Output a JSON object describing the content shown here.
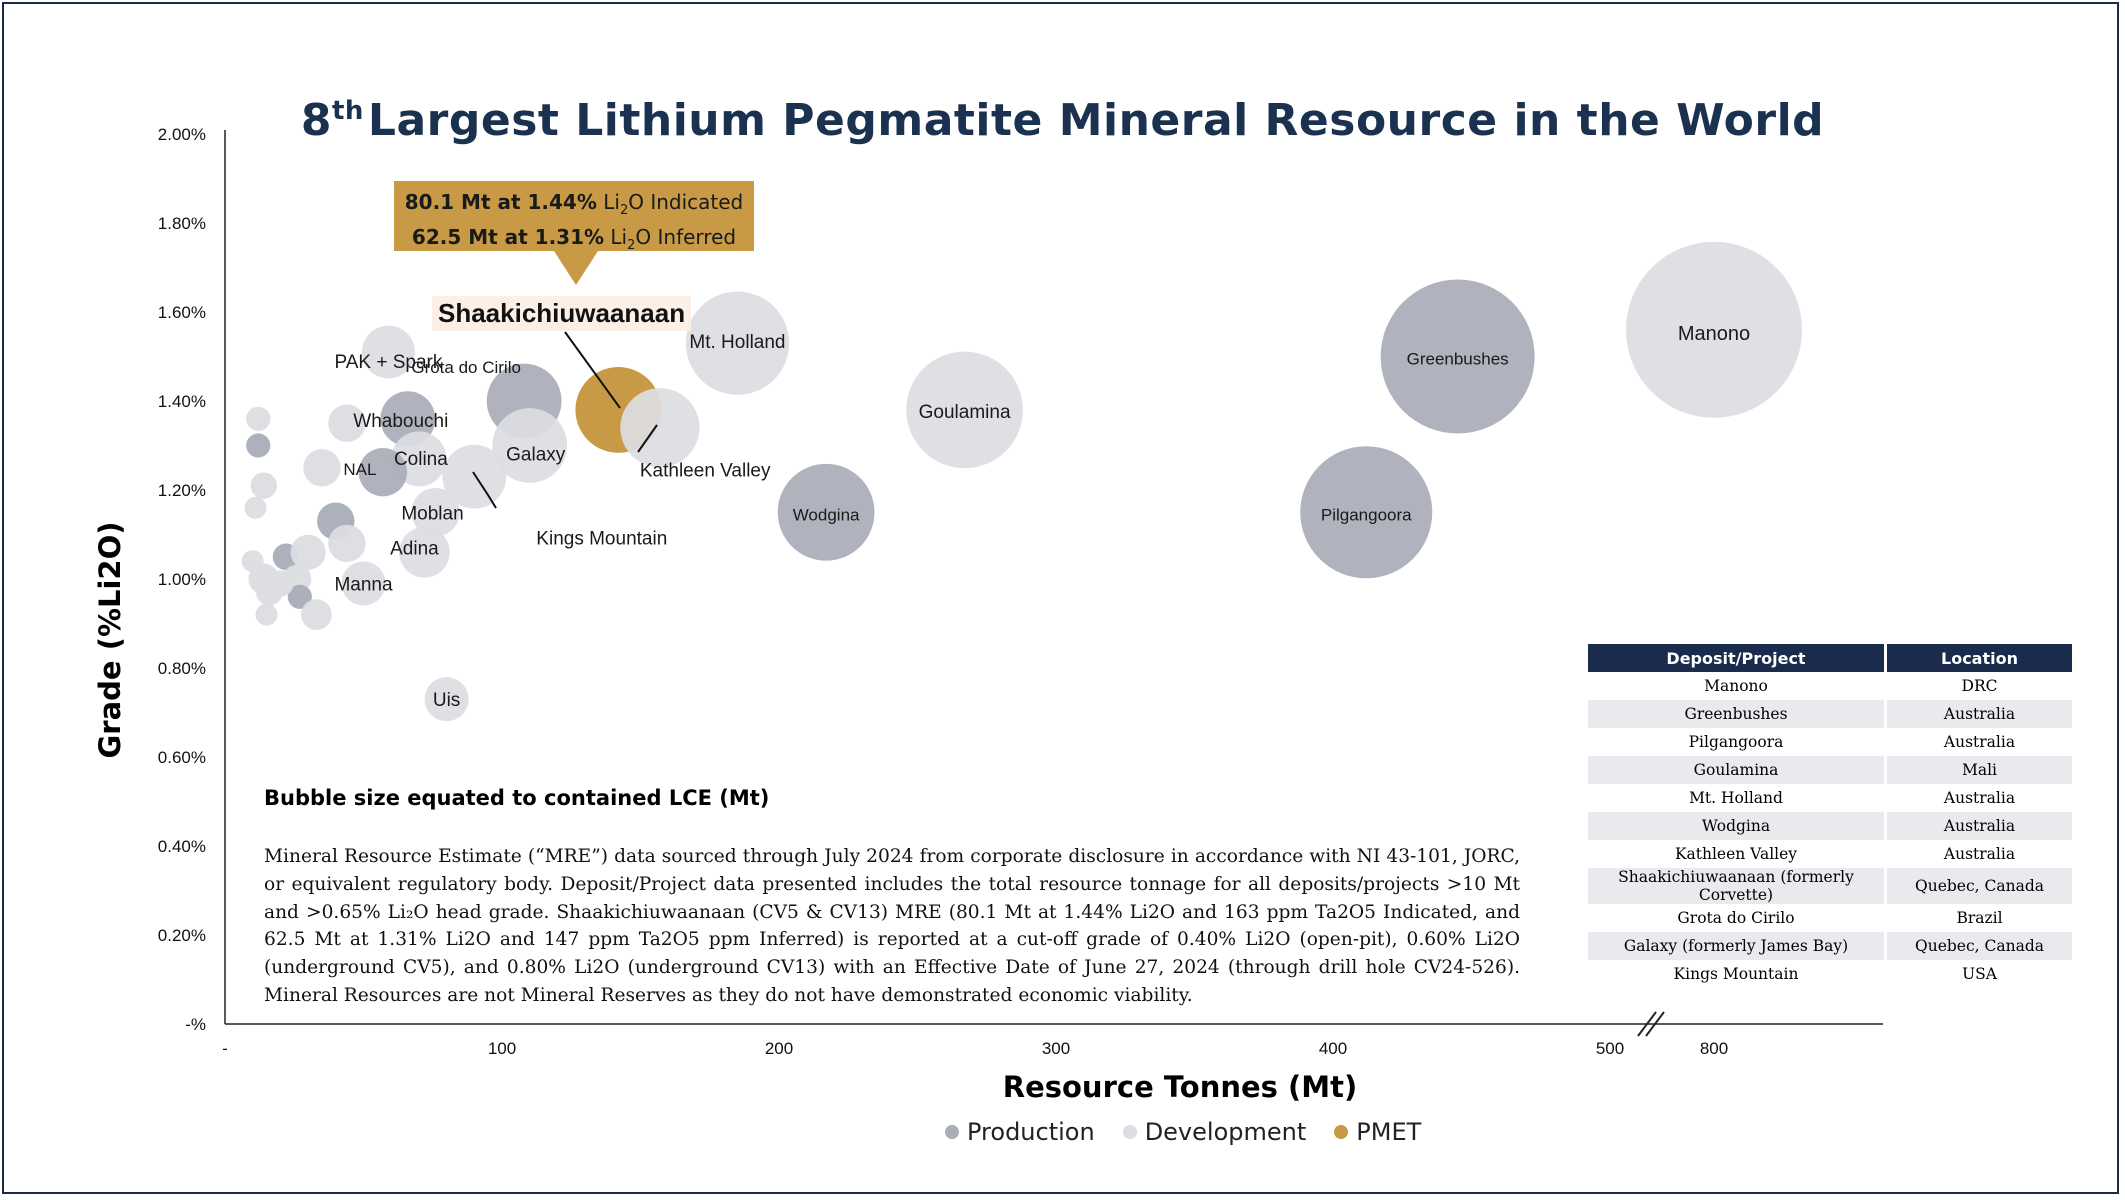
{
  "title": {
    "sup": "th",
    "pre": "8",
    "rest": "Largest Lithium Pegmatite Mineral Resource in the World"
  },
  "callout": {
    "line1_bold": "80.1 Mt at 1.44%",
    "line1_rest": "Indicated",
    "line2_bold": "62.5 Mt at 1.31%",
    "line2_rest": "Inferred",
    "chem": "Li",
    "chem_sub": "2",
    "chem_end": "O"
  },
  "highlight_label": "Shaakichiuwaanaan",
  "note_title": "Bubble size equated to contained LCE (Mt)",
  "note_text": "Mineral Resource Estimate (“MRE”) data sourced through July 2024 from corporate disclosure in accordance with NI 43-101, JORC, or equivalent regulatory body. Deposit/Project data presented includes the total resource tonnage for all deposits/projects >10 Mt and >0.65% Li₂O head grade. Shaakichiuwaanaan (CV5 & CV13) MRE (80.1 Mt at 1.44% Li2O and 163 ppm Ta2O5 Indicated, and 62.5 Mt at 1.31% Li2O and 147 ppm Ta2O5 ppm Inferred) is reported at a cut-off grade of 0.40% Li2O (open-pit), 0.60% Li2O (underground CV5), and 0.80% Li2O (underground CV13) with an Effective Date of June 27, 2024 (through drill hole CV24-526). Mineral Resources are not Mineral Reserves as they do not have demonstrated economic viability.",
  "table": {
    "headers": [
      "Deposit/Project",
      "Location"
    ],
    "rows": [
      [
        "Manono",
        "DRC"
      ],
      [
        "Greenbushes",
        "Australia"
      ],
      [
        "Pilgangoora",
        "Australia"
      ],
      [
        "Goulamina",
        "Mali"
      ],
      [
        "Mt. Holland",
        "Australia"
      ],
      [
        "Wodgina",
        "Australia"
      ],
      [
        "Kathleen Valley",
        "Australia"
      ],
      [
        "Shaakichiuwaanaan (formerly Corvette)",
        "Quebec, Canada"
      ],
      [
        "Grota do Cirilo",
        "Brazil"
      ],
      [
        "Galaxy (formerly James Bay)",
        "Quebec, Canada"
      ],
      [
        "Kings Mountain",
        "USA"
      ]
    ]
  },
  "legend": [
    {
      "label": "Production",
      "color": "#a9adb8"
    },
    {
      "label": "Development",
      "color": "#dcdde2"
    },
    {
      "label": "PMET",
      "color": "#c89a46"
    }
  ],
  "chart_data": {
    "type": "scatter",
    "subtype": "bubble",
    "xlabel": "Resource Tonnes (Mt)",
    "ylabel": "Grade (%Li2O)",
    "xlim": [
      0,
      600
    ],
    "x_axis_break": "between 500 and 800 (800 plotted after break)",
    "x_ticks": [
      "-",
      "100",
      "200",
      "300",
      "400",
      "500",
      "800"
    ],
    "ylim": [
      0,
      2.0
    ],
    "y_ticks": [
      "-%",
      "0.20%",
      "0.40%",
      "0.60%",
      "0.80%",
      "1.00%",
      "1.20%",
      "1.40%",
      "1.60%",
      "1.80%",
      "2.00%"
    ],
    "colors": {
      "Production": "#a9adb8",
      "Development": "#dcdde2",
      "PMET": "#c89a46"
    },
    "labeled_points": [
      {
        "name": "Manono",
        "x": 800,
        "y": 1.56,
        "size": 8.0,
        "status": "Development"
      },
      {
        "name": "Greenbushes",
        "x": 445,
        "y": 1.5,
        "size": 7.0,
        "status": "Production"
      },
      {
        "name": "Pilgangoora",
        "x": 412,
        "y": 1.15,
        "size": 6.0,
        "status": "Production"
      },
      {
        "name": "Goulamina",
        "x": 267,
        "y": 1.38,
        "size": 5.3,
        "status": "Development"
      },
      {
        "name": "Wodgina",
        "x": 217,
        "y": 1.15,
        "size": 4.4,
        "status": "Production"
      },
      {
        "name": "Mt. Holland",
        "x": 185,
        "y": 1.53,
        "size": 4.7,
        "status": "Development"
      },
      {
        "name": "Kathleen Valley",
        "x": 157,
        "y": 1.34,
        "size": 3.6,
        "status": "Development"
      },
      {
        "name": "Shaakichiuwaanaan",
        "x": 142,
        "y": 1.38,
        "size": 3.9,
        "status": "PMET"
      },
      {
        "name": "Grota do Cirilo",
        "x": 108,
        "y": 1.4,
        "size": 3.4,
        "status": "Production"
      },
      {
        "name": "Galaxy",
        "x": 110,
        "y": 1.3,
        "size": 3.4,
        "status": "Development"
      },
      {
        "name": "Kings Mountain",
        "x": 90,
        "y": 1.23,
        "size": 2.9,
        "status": "Development"
      },
      {
        "name": "PAK + Spark",
        "x": 59,
        "y": 1.51,
        "size": 2.4,
        "status": "Development"
      },
      {
        "name": "Whabouchi",
        "x": 66,
        "y": 1.36,
        "size": 2.5,
        "status": "Production"
      },
      {
        "name": "Colina",
        "x": 70,
        "y": 1.27,
        "size": 2.5,
        "status": "Development"
      },
      {
        "name": "NAL",
        "x": 57,
        "y": 1.24,
        "size": 2.2,
        "status": "Production"
      },
      {
        "name": "Moblan",
        "x": 76,
        "y": 1.15,
        "size": 2.2,
        "status": "Development"
      },
      {
        "name": "Adina",
        "x": 72,
        "y": 1.06,
        "size": 2.3,
        "status": "Development"
      },
      {
        "name": "Manna",
        "x": 50,
        "y": 0.99,
        "size": 2.0,
        "status": "Development"
      },
      {
        "name": "Uis",
        "x": 80,
        "y": 0.73,
        "size": 2.0,
        "status": "Development"
      }
    ],
    "unlabeled_points": [
      {
        "x": 12,
        "y": 1.36,
        "size": 1.1,
        "status": "Development"
      },
      {
        "x": 12,
        "y": 1.3,
        "size": 1.1,
        "status": "Production"
      },
      {
        "x": 14,
        "y": 1.21,
        "size": 1.2,
        "status": "Development"
      },
      {
        "x": 11,
        "y": 1.16,
        "size": 1.0,
        "status": "Development"
      },
      {
        "x": 35,
        "y": 1.25,
        "size": 1.7,
        "status": "Development"
      },
      {
        "x": 40,
        "y": 1.13,
        "size": 1.7,
        "status": "Production"
      },
      {
        "x": 44,
        "y": 1.35,
        "size": 1.7,
        "status": "Development"
      },
      {
        "x": 22,
        "y": 1.05,
        "size": 1.2,
        "status": "Production"
      },
      {
        "x": 30,
        "y": 1.06,
        "size": 1.6,
        "status": "Development"
      },
      {
        "x": 44,
        "y": 1.08,
        "size": 1.7,
        "status": "Development"
      },
      {
        "x": 10,
        "y": 1.04,
        "size": 1.0,
        "status": "Development"
      },
      {
        "x": 14,
        "y": 1.0,
        "size": 1.4,
        "status": "Development"
      },
      {
        "x": 16,
        "y": 0.97,
        "size": 1.2,
        "status": "Development"
      },
      {
        "x": 26,
        "y": 1.0,
        "size": 1.3,
        "status": "Development"
      },
      {
        "x": 27,
        "y": 0.96,
        "size": 1.1,
        "status": "Production"
      },
      {
        "x": 15,
        "y": 0.92,
        "size": 1.0,
        "status": "Development"
      },
      {
        "x": 33,
        "y": 0.92,
        "size": 1.4,
        "status": "Development"
      },
      {
        "x": 20,
        "y": 0.99,
        "size": 1.2,
        "status": "Development"
      }
    ]
  }
}
